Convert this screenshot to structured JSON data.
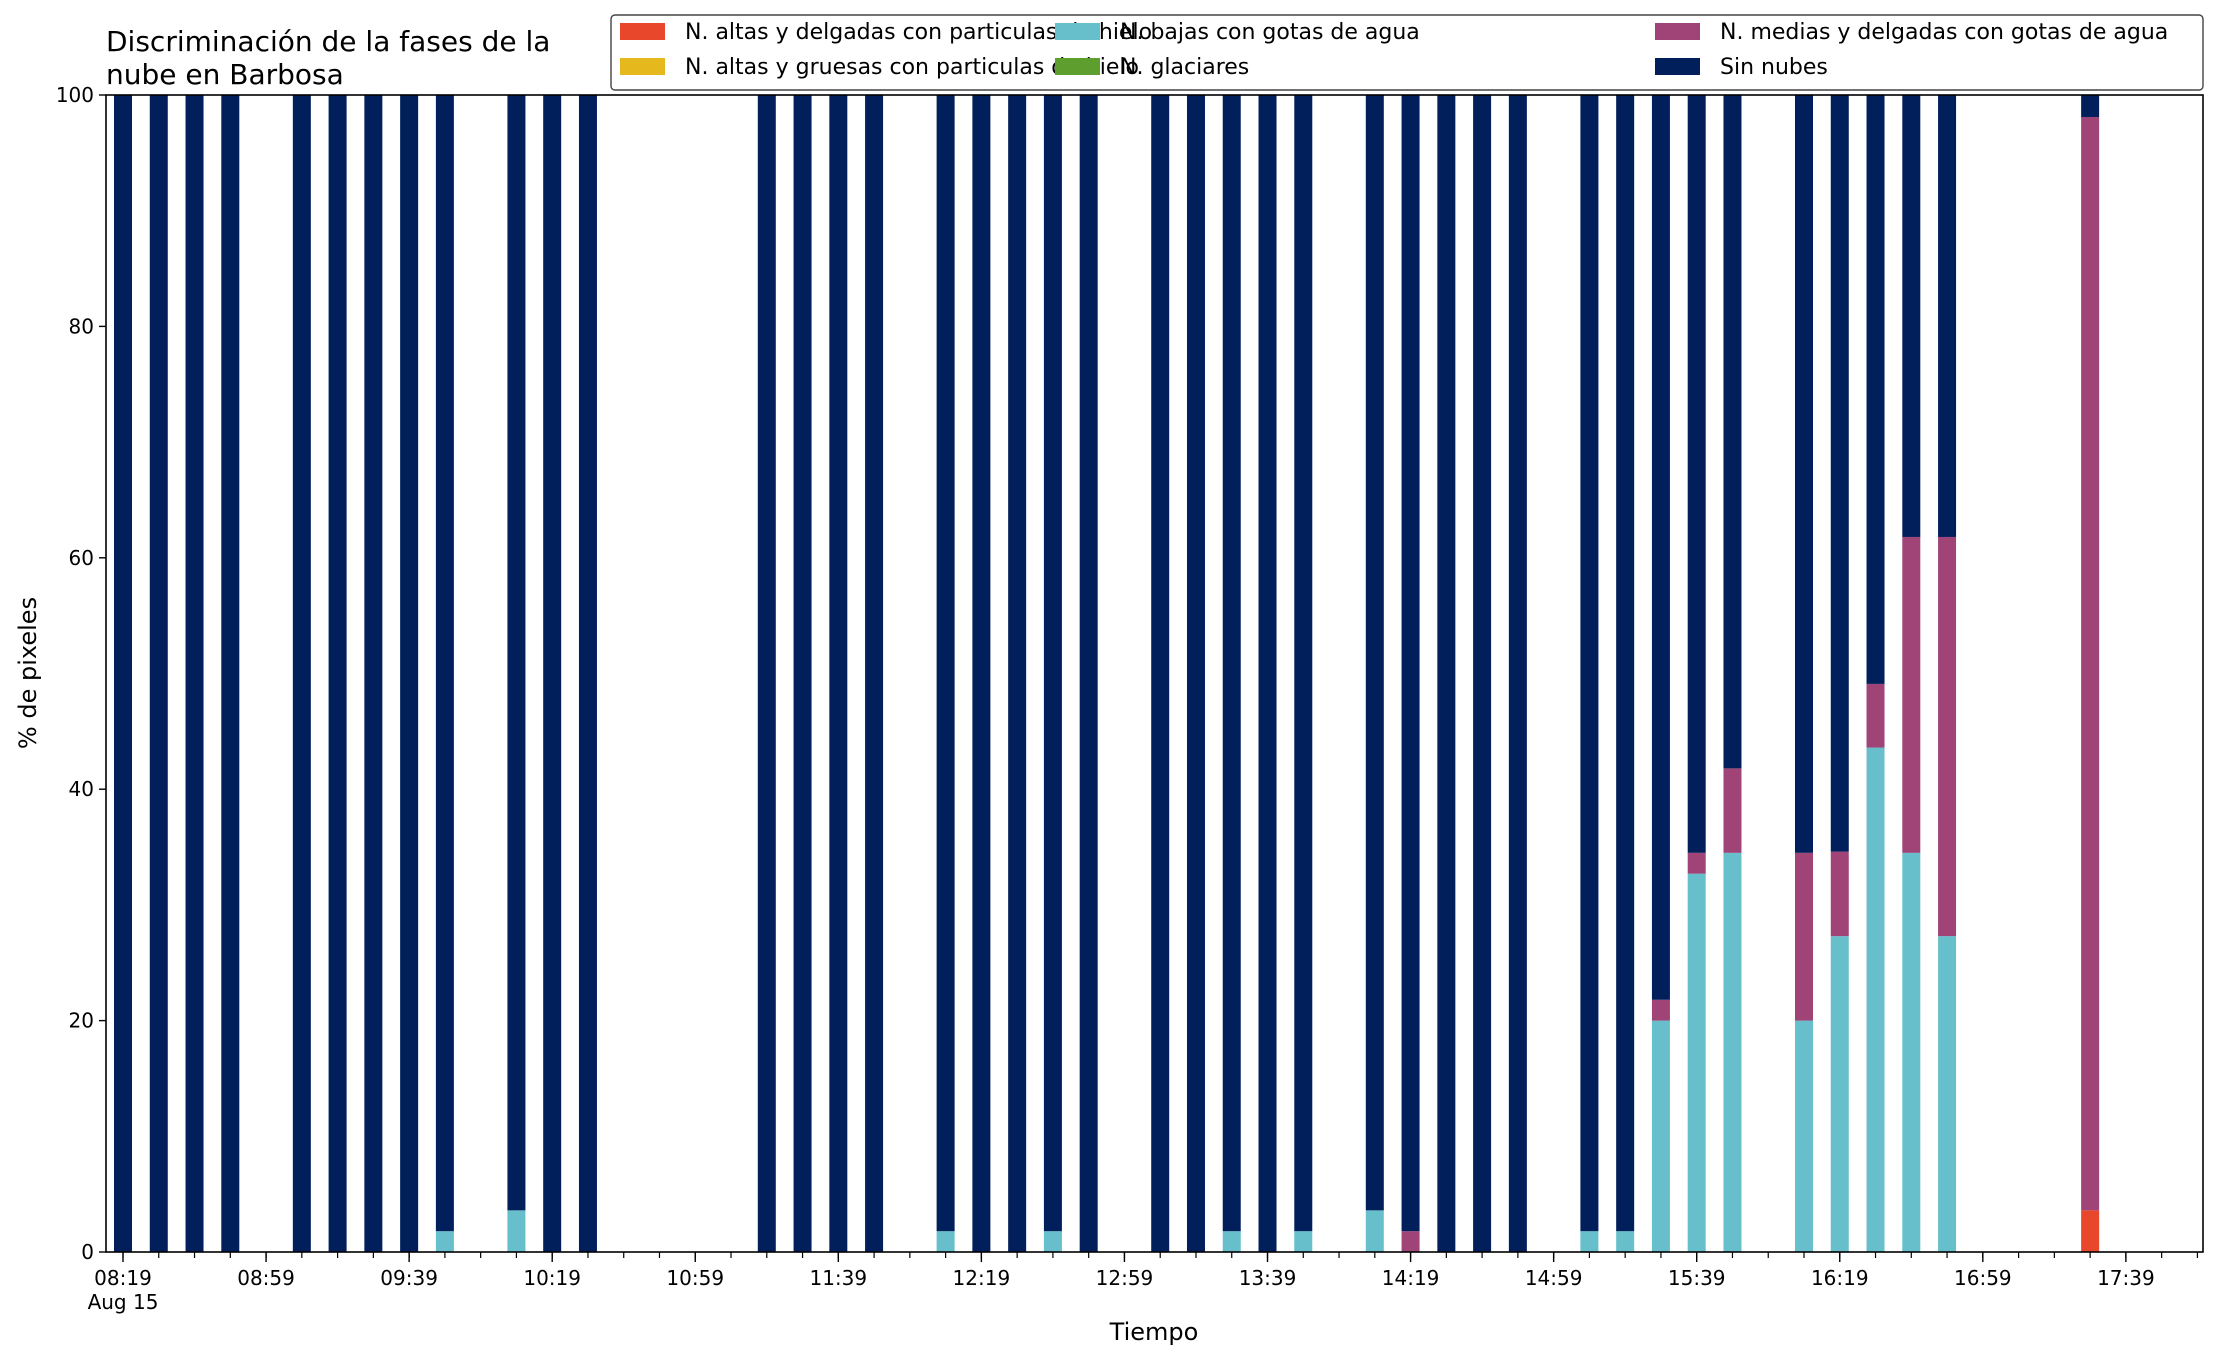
{
  "chart_data": {
    "type": "bar",
    "stacked": true,
    "title": "Discriminación de la fases de la nube en Barbosa",
    "title_lines": [
      "Discriminación de la fases de la",
      "nube en Barbosa"
    ],
    "xlabel": "Tiempo",
    "ylabel": "% de pixeles",
    "ylim": [
      0,
      100
    ],
    "yticks": [
      0,
      20,
      40,
      60,
      80,
      100
    ],
    "xlim": [
      "08:19",
      "18:00"
    ],
    "xtick_labels": [
      "08:19",
      "08:59",
      "09:39",
      "10:19",
      "10:59",
      "11:39",
      "12:19",
      "12:59",
      "13:39",
      "14:19",
      "14:59",
      "15:39",
      "16:19",
      "16:59",
      "17:39"
    ],
    "xtick_date_label": "Aug 15",
    "grid": false,
    "legend_position": "top-right",
    "x": [
      "08:19",
      "08:29",
      "08:39",
      "08:49",
      "09:09",
      "09:19",
      "09:29",
      "09:39",
      "09:49",
      "10:09",
      "10:19",
      "10:29",
      "11:19",
      "11:29",
      "11:39",
      "11:49",
      "12:09",
      "12:19",
      "12:29",
      "12:39",
      "12:49",
      "13:09",
      "13:19",
      "13:29",
      "13:39",
      "13:49",
      "14:09",
      "14:19",
      "14:29",
      "14:39",
      "14:49",
      "15:09",
      "15:19",
      "15:29",
      "15:39",
      "15:49",
      "16:09",
      "16:19",
      "16:29",
      "16:39",
      "16:49",
      "17:29"
    ],
    "series": [
      {
        "name": "N. altas y delgadas con particulas de hielo",
        "color": "#e8472c",
        "values": [
          0,
          0,
          0,
          0,
          0,
          0,
          0,
          0,
          0,
          0,
          0,
          0,
          0,
          0,
          0,
          0,
          0,
          0,
          0,
          0,
          0,
          0,
          0,
          0,
          0,
          0,
          0,
          0,
          0,
          0,
          0,
          0,
          0,
          0,
          0,
          0,
          0,
          0,
          0,
          0,
          0,
          3.6
        ]
      },
      {
        "name": "N. altas y gruesas con particulas de hielo",
        "color": "#e5b81d",
        "values": [
          0,
          0,
          0,
          0,
          0,
          0,
          0,
          0,
          0,
          0,
          0,
          0,
          0,
          0,
          0,
          0,
          0,
          0,
          0,
          0,
          0,
          0,
          0,
          0,
          0,
          0,
          0,
          0,
          0,
          0,
          0,
          0,
          0,
          0,
          0,
          0,
          0,
          0,
          0,
          0,
          0,
          0
        ]
      },
      {
        "name": "N. bajas con gotas de agua",
        "color": "#67bfcc",
        "values": [
          0,
          0,
          0,
          0,
          0,
          0,
          0,
          0,
          1.8,
          3.6,
          0,
          0,
          0,
          0,
          0,
          0,
          1.8,
          0,
          0,
          1.8,
          0,
          0,
          0,
          1.8,
          0,
          1.8,
          3.6,
          0,
          0,
          0,
          0,
          1.8,
          1.8,
          20,
          32.7,
          34.5,
          20,
          27.3,
          43.6,
          34.5,
          27.3,
          0
        ]
      },
      {
        "name": "N. glaciares",
        "color": "#5e9e2f",
        "values": [
          0,
          0,
          0,
          0,
          0,
          0,
          0,
          0,
          0,
          0,
          0,
          0,
          0,
          0,
          0,
          0,
          0,
          0,
          0,
          0,
          0,
          0,
          0,
          0,
          0,
          0,
          0,
          0,
          0,
          0,
          0,
          0,
          0,
          0,
          0,
          0,
          0,
          0,
          0,
          0,
          0,
          0
        ]
      },
      {
        "name": "N. medias y delgadas con gotas de agua",
        "color": "#a04377",
        "values": [
          0,
          0,
          0,
          0,
          0,
          0,
          0,
          0,
          0,
          0,
          0,
          0,
          0,
          0,
          0,
          0,
          0,
          0,
          0,
          0,
          0,
          0,
          0,
          0,
          0,
          0,
          0,
          1.8,
          0,
          0,
          0,
          0,
          0,
          1.8,
          1.8,
          7.3,
          14.5,
          7.3,
          5.5,
          27.3,
          34.5,
          94.5
        ]
      },
      {
        "name": "Sin nubes",
        "color": "#001f5b",
        "values": [
          100,
          100,
          100,
          100,
          100,
          100,
          100,
          100,
          98.2,
          96.4,
          100,
          100,
          100,
          100,
          100,
          100,
          98.2,
          100,
          100,
          98.2,
          100,
          100,
          100,
          98.2,
          100,
          98.2,
          96.4,
          98.2,
          100,
          100,
          100,
          98.2,
          98.2,
          78.2,
          65.5,
          58.2,
          65.5,
          65.4,
          50.9,
          38.2,
          38.2,
          1.9
        ]
      }
    ],
    "legend_order": [
      "N. altas y delgadas con particulas de hielo",
      "N. altas y gruesas con particulas de hielo",
      "N. bajas con gotas de agua",
      "N. glaciares",
      "N. medias y delgadas con gotas de agua",
      "Sin nubes"
    ]
  }
}
